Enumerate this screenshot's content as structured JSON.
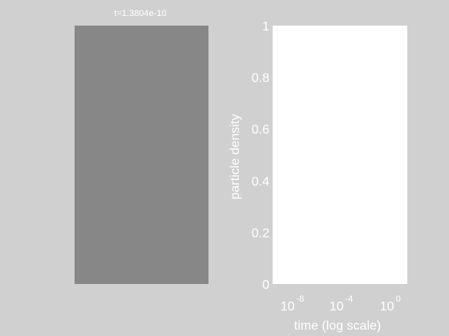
{
  "left_panel": {
    "title": "t=1.3804e-10",
    "color": "#878787"
  },
  "chart_data": {
    "type": "line",
    "title": "",
    "xlabel": "time (log scale)",
    "ylabel": "particle density",
    "x_scale": "log",
    "xlim": [
      1e-10,
      10
    ],
    "ylim": [
      0,
      1
    ],
    "x_ticks": [
      {
        "base": "10",
        "exp": "-8",
        "value": 1e-08
      },
      {
        "base": "10",
        "exp": "-4",
        "value": 0.0001
      },
      {
        "base": "10",
        "exp": "0",
        "value": 1
      }
    ],
    "y_ticks": [
      "0",
      "0.2",
      "0.4",
      "0.6",
      "0.8",
      "1"
    ],
    "grid": false,
    "series": [],
    "plot_background": "#ffffff",
    "figure_background": "#d0d0d0",
    "text_color": "#ffffff"
  }
}
